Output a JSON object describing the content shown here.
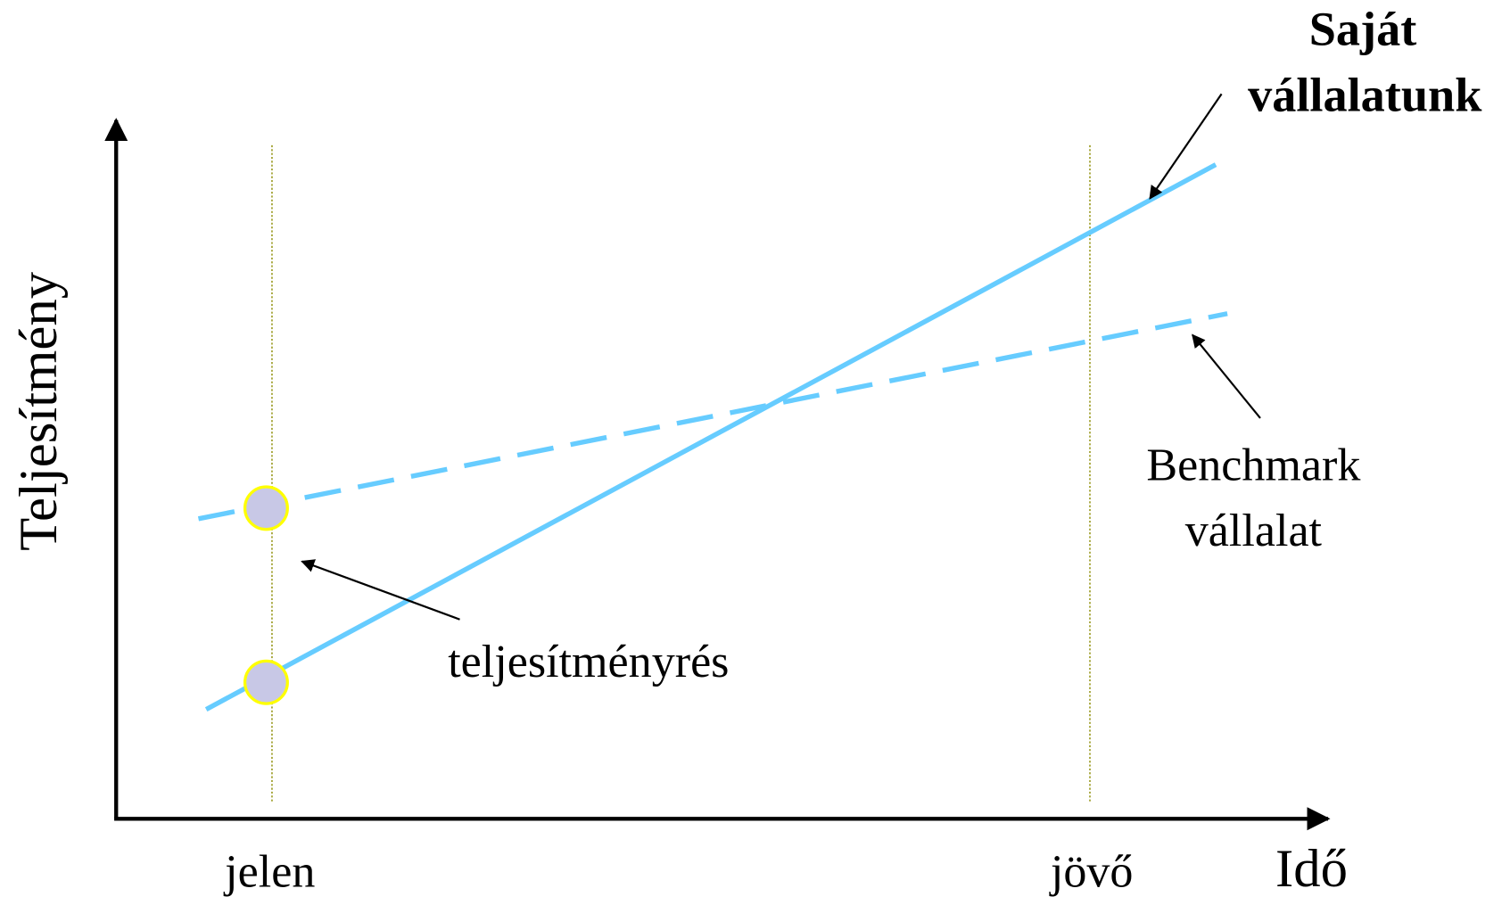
{
  "title": {
    "lines": [
      "Saját",
      "vállalatunk"
    ]
  },
  "benchmark": {
    "lines": [
      "Benchmark",
      "vállalat"
    ]
  },
  "gap_label": "teljesítményrés",
  "y_axis_label": "Teljesítmény",
  "x_axis_label": "Idő",
  "time_points": [
    "jelen",
    "jövő"
  ]
}
